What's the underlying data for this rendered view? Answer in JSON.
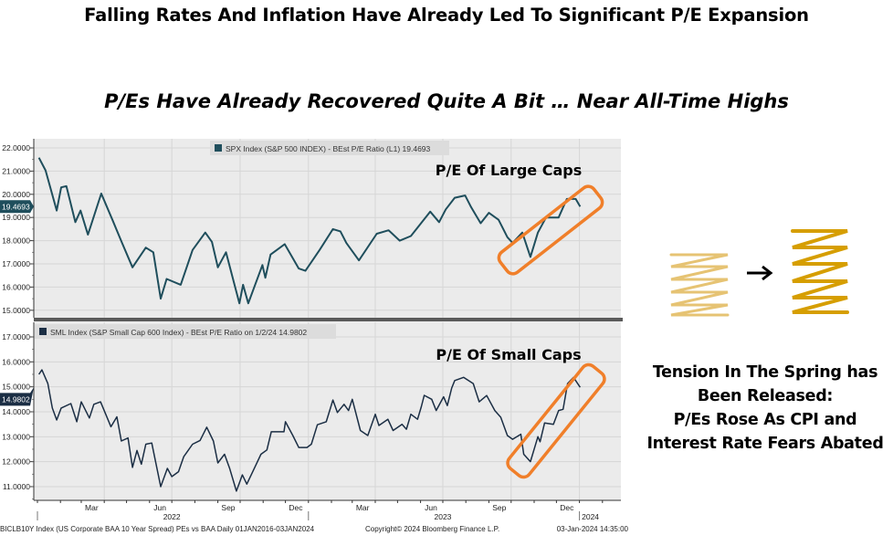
{
  "slide": {
    "title": "Falling Rates And Inflation Have Already Led To Significant P/E Expansion",
    "subtitle": "P/Es Have Already Recovered Quite A Bit … Near All-Time Highs",
    "note_lines": [
      "Tension In The Spring has",
      "Been Released:",
      "P/Es Rose As CPI and",
      "Interest Rate Fears Abated"
    ],
    "icons": [
      "compressed-spring-icon",
      "arrow-right-icon",
      "expanded-spring-icon"
    ],
    "colors": {
      "highlight": "#f07f2a",
      "spring_compressed": "#e2b85a",
      "spring_expanded": "#d69e00",
      "line_top": "#1f4e5c",
      "line_bottom": "#1b2e44"
    }
  },
  "chart_data": [
    {
      "type": "line",
      "legend": "SPX Index (S&P 500 INDEX) - BEst P/E Ratio (L1) 19.4693",
      "annotation": "P/E Of Large Caps",
      "last_value_label": "19.4693",
      "ylim": [
        14.8,
        22.3
      ],
      "yticks": [
        "15.0000",
        "16.0000",
        "17.0000",
        "18.0000",
        "19.0000",
        "20.0000",
        "21.0000",
        "22.0000"
      ],
      "grid": true,
      "series": [
        {
          "values": [
            [
              "2022-01-03",
              21.58
            ],
            [
              "2022-01-12",
              21.03
            ],
            [
              "2022-01-27",
              19.3
            ],
            [
              "2022-02-02",
              20.3
            ],
            [
              "2022-02-09",
              20.35
            ],
            [
              "2022-02-21",
              18.8
            ],
            [
              "2022-02-28",
              19.3
            ],
            [
              "2022-03-10",
              18.26
            ],
            [
              "2022-03-28",
              20.03
            ],
            [
              "2022-04-12",
              18.9
            ],
            [
              "2022-04-25",
              17.9
            ],
            [
              "2022-05-09",
              16.85
            ],
            [
              "2022-05-27",
              17.7
            ],
            [
              "2022-06-06",
              17.5
            ],
            [
              "2022-06-16",
              15.5
            ],
            [
              "2022-06-24",
              16.35
            ],
            [
              "2022-07-13",
              16.1
            ],
            [
              "2022-07-29",
              17.6
            ],
            [
              "2022-08-15",
              18.35
            ],
            [
              "2022-08-24",
              17.95
            ],
            [
              "2022-09-01",
              16.85
            ],
            [
              "2022-09-12",
              17.5
            ],
            [
              "2022-09-30",
              15.3
            ],
            [
              "2022-10-05",
              16.1
            ],
            [
              "2022-10-12",
              15.3
            ],
            [
              "2022-10-31",
              16.95
            ],
            [
              "2022-11-04",
              16.4
            ],
            [
              "2022-11-11",
              17.4
            ],
            [
              "2022-11-30",
              17.85
            ],
            [
              "2022-12-19",
              16.8
            ],
            [
              "2022-12-28",
              16.7
            ],
            [
              "2023-01-16",
              17.6
            ],
            [
              "2023-02-03",
              18.5
            ],
            [
              "2023-02-13",
              18.4
            ],
            [
              "2023-02-21",
              17.9
            ],
            [
              "2023-03-10",
              17.15
            ],
            [
              "2023-04-03",
              18.3
            ],
            [
              "2023-04-19",
              18.45
            ],
            [
              "2023-05-04",
              18.0
            ],
            [
              "2023-05-19",
              18.2
            ],
            [
              "2023-06-14",
              19.25
            ],
            [
              "2023-06-26",
              18.8
            ],
            [
              "2023-07-05",
              19.35
            ],
            [
              "2023-07-17",
              19.85
            ],
            [
              "2023-07-31",
              19.95
            ],
            [
              "2023-08-08",
              19.45
            ],
            [
              "2023-08-21",
              18.75
            ],
            [
              "2023-09-01",
              19.2
            ],
            [
              "2023-09-14",
              18.9
            ],
            [
              "2023-09-26",
              18.15
            ],
            [
              "2023-10-03",
              17.9
            ],
            [
              "2023-10-16",
              18.35
            ],
            [
              "2023-10-27",
              17.3
            ],
            [
              "2023-11-06",
              18.35
            ],
            [
              "2023-11-17",
              19.0
            ],
            [
              "2023-12-04",
              19.0
            ],
            [
              "2023-12-15",
              19.8
            ],
            [
              "2023-12-27",
              19.8
            ],
            [
              "2024-01-02",
              19.4693
            ]
          ]
        }
      ]
    },
    {
      "type": "line",
      "legend": "SML Index (S&P Small Cap 600 Index) - BEst P/E Ratio on 1/2/24 14.9802",
      "annotation": "P/E Of Small Caps",
      "last_value_label": "14.9802",
      "ylim": [
        10.4,
        17.3
      ],
      "yticks": [
        "11.0000",
        "12.0000",
        "13.0000",
        "14.0000",
        "15.0000",
        "16.0000",
        "17.0000"
      ],
      "grid": true,
      "series": [
        {
          "values": [
            [
              "2022-01-03",
              15.5
            ],
            [
              "2022-01-07",
              15.68
            ],
            [
              "2022-01-15",
              15.13
            ],
            [
              "2022-01-21",
              14.15
            ],
            [
              "2022-01-27",
              13.67
            ],
            [
              "2022-02-02",
              14.15
            ],
            [
              "2022-02-15",
              14.33
            ],
            [
              "2022-02-23",
              13.6
            ],
            [
              "2022-03-01",
              14.4
            ],
            [
              "2022-03-12",
              13.75
            ],
            [
              "2022-03-18",
              14.3
            ],
            [
              "2022-03-27",
              14.4
            ],
            [
              "2022-04-03",
              13.9
            ],
            [
              "2022-04-10",
              13.4
            ],
            [
              "2022-04-18",
              13.8
            ],
            [
              "2022-04-24",
              12.83
            ],
            [
              "2022-05-03",
              12.95
            ],
            [
              "2022-05-09",
              11.77
            ],
            [
              "2022-05-15",
              12.45
            ],
            [
              "2022-05-21",
              11.9
            ],
            [
              "2022-05-27",
              12.7
            ],
            [
              "2022-06-04",
              12.75
            ],
            [
              "2022-06-16",
              11.0
            ],
            [
              "2022-06-25",
              11.73
            ],
            [
              "2022-07-01",
              11.4
            ],
            [
              "2022-07-10",
              11.6
            ],
            [
              "2022-07-17",
              12.2
            ],
            [
              "2022-07-29",
              12.7
            ],
            [
              "2022-08-08",
              12.85
            ],
            [
              "2022-08-17",
              13.38
            ],
            [
              "2022-08-26",
              12.83
            ],
            [
              "2022-09-01",
              11.95
            ],
            [
              "2022-09-10",
              12.3
            ],
            [
              "2022-09-17",
              11.72
            ],
            [
              "2022-09-26",
              10.82
            ],
            [
              "2022-10-04",
              11.47
            ],
            [
              "2022-10-10",
              11.1
            ],
            [
              "2022-10-18",
              11.6
            ],
            [
              "2022-10-29",
              12.3
            ],
            [
              "2022-11-06",
              12.47
            ],
            [
              "2022-11-12",
              13.2
            ],
            [
              "2022-11-29",
              13.2
            ],
            [
              "2022-12-01",
              13.6
            ],
            [
              "2022-12-11",
              13.05
            ],
            [
              "2022-12-19",
              12.57
            ],
            [
              "2022-12-30",
              12.57
            ],
            [
              "2023-01-05",
              12.7
            ],
            [
              "2023-01-13",
              13.48
            ],
            [
              "2023-01-25",
              13.6
            ],
            [
              "2023-02-03",
              14.47
            ],
            [
              "2023-02-09",
              13.97
            ],
            [
              "2023-02-18",
              14.3
            ],
            [
              "2023-02-24",
              14.05
            ],
            [
              "2023-03-01",
              14.5
            ],
            [
              "2023-03-12",
              13.25
            ],
            [
              "2023-03-22",
              13.05
            ],
            [
              "2023-04-01",
              13.9
            ],
            [
              "2023-04-06",
              13.45
            ],
            [
              "2023-04-18",
              13.7
            ],
            [
              "2023-04-25",
              13.25
            ],
            [
              "2023-05-07",
              13.5
            ],
            [
              "2023-05-13",
              13.3
            ],
            [
              "2023-05-19",
              13.9
            ],
            [
              "2023-05-28",
              13.7
            ],
            [
              "2023-06-02",
              14.2
            ],
            [
              "2023-06-06",
              14.66
            ],
            [
              "2023-06-16",
              14.5
            ],
            [
              "2023-06-22",
              14.05
            ],
            [
              "2023-07-02",
              14.6
            ],
            [
              "2023-07-07",
              14.25
            ],
            [
              "2023-07-13",
              14.95
            ],
            [
              "2023-07-17",
              15.25
            ],
            [
              "2023-07-29",
              15.38
            ],
            [
              "2023-08-11",
              15.13
            ],
            [
              "2023-08-19",
              14.4
            ],
            [
              "2023-08-29",
              14.65
            ],
            [
              "2023-09-09",
              14.05
            ],
            [
              "2023-09-17",
              13.78
            ],
            [
              "2023-09-26",
              13.05
            ],
            [
              "2023-10-03",
              12.9
            ],
            [
              "2023-10-14",
              13.1
            ],
            [
              "2023-10-18",
              12.3
            ],
            [
              "2023-10-27",
              12.0
            ],
            [
              "2023-11-06",
              13.0
            ],
            [
              "2023-11-09",
              12.8
            ],
            [
              "2023-11-15",
              13.55
            ],
            [
              "2023-11-27",
              13.5
            ],
            [
              "2023-12-04",
              14.05
            ],
            [
              "2023-12-10",
              14.1
            ],
            [
              "2023-12-16",
              15.13
            ],
            [
              "2023-12-24",
              15.38
            ],
            [
              "2024-01-02",
              14.9802
            ]
          ]
        }
      ]
    }
  ],
  "x_axis": {
    "range": [
      "2021-12-25",
      "2024-02-15"
    ],
    "month_labels": [
      [
        "2022-03",
        "Mar"
      ],
      [
        "2022-06",
        "Jun"
      ],
      [
        "2022-09",
        "Sep"
      ],
      [
        "2022-12",
        "Dec"
      ],
      [
        "2023-03",
        "Mar"
      ],
      [
        "2023-06",
        "Jun"
      ],
      [
        "2023-09",
        "Sep"
      ],
      [
        "2023-12",
        "Dec"
      ]
    ],
    "year_labels": [
      [
        "2022",
        "2022"
      ],
      [
        "2023",
        "2023"
      ],
      [
        "2024",
        "2024"
      ]
    ]
  },
  "footer": {
    "left": "BICLB10Y Index (US Corporate BAA 10 Year Spread) PEs vs BAA  Daily 01JAN2016-03JAN2024",
    "center": "Copyright© 2024 Bloomberg Finance L.P.",
    "right": "03-Jan-2024 14:35:00"
  }
}
